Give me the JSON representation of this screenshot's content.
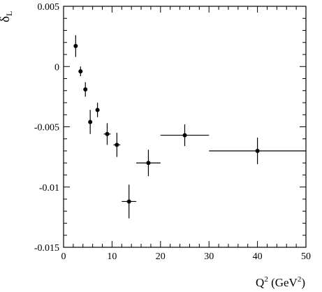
{
  "chart_data": {
    "type": "scatter",
    "xlabel": "Q² (GeV²)",
    "ylabel": "δL",
    "xlim": [
      0,
      50
    ],
    "ylim": [
      -0.015,
      0.005
    ],
    "x_ticks": [
      "0",
      "10",
      "20",
      "30",
      "40",
      "50"
    ],
    "y_ticks": [
      "-0.015",
      "-0.01",
      "-0.005",
      "0",
      "0.005"
    ],
    "grid": false,
    "series": [
      {
        "points": [
          {
            "x": 2.5,
            "y": 0.0017,
            "xerr_low": 0.0,
            "xerr_high": 0.0,
            "yerr": 0.0009
          },
          {
            "x": 3.5,
            "y": -0.0004,
            "xerr_low": 0.0,
            "xerr_high": 0.0,
            "yerr": 0.0004
          },
          {
            "x": 4.5,
            "y": -0.0019,
            "xerr_low": 0.0,
            "xerr_high": 0.0,
            "yerr": 0.0006
          },
          {
            "x": 5.5,
            "y": -0.0046,
            "xerr_low": 0.0,
            "xerr_high": 0.0,
            "yerr": 0.001
          },
          {
            "x": 7.0,
            "y": -0.0036,
            "xerr_low": 0.0,
            "xerr_high": 0.0,
            "yerr": 0.0006
          },
          {
            "x": 9.0,
            "y": -0.0056,
            "xerr_low": 0.7,
            "xerr_high": 0.7,
            "yerr": 0.0009
          },
          {
            "x": 11.0,
            "y": -0.0065,
            "xerr_low": 0.7,
            "xerr_high": 0.7,
            "yerr": 0.001
          },
          {
            "x": 13.5,
            "y": -0.0112,
            "xerr_low": 1.5,
            "xerr_high": 1.5,
            "yerr": 0.0014
          },
          {
            "x": 17.5,
            "y": -0.008,
            "xerr_low": 2.5,
            "xerr_high": 2.5,
            "yerr": 0.0011
          },
          {
            "x": 25.0,
            "y": -0.0057,
            "xerr_low": 5.0,
            "xerr_high": 5.0,
            "yerr": 0.0009
          },
          {
            "x": 40.0,
            "y": -0.007,
            "xerr_low": 10.0,
            "xerr_high": 10.0,
            "yerr": 0.0011
          }
        ]
      }
    ]
  }
}
